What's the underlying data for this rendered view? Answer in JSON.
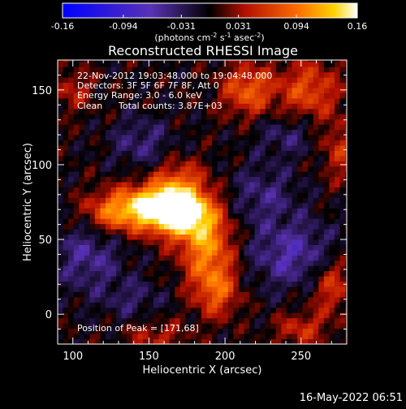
{
  "colorbar": {
    "ticks": [
      "-0.16",
      "-0.094",
      "-0.031",
      "0.031",
      "0.094",
      "0.16"
    ],
    "tick_values": [
      -0.16,
      -0.094,
      -0.031,
      0.031,
      0.094,
      0.16
    ],
    "range": [
      -0.16,
      0.16
    ],
    "unit_label_parts": [
      "(photons cm",
      "-2",
      " s",
      "-1",
      " asec",
      "-2",
      ")"
    ],
    "colormap": "blue-purple-black-red-orange-yellow-white"
  },
  "chart_data": {
    "type": "heatmap",
    "title": "Reconstructed RHESSI Image",
    "xlabel": "Heliocentric X (arcsec)",
    "ylabel": "Heliocentric Y (arcsec)",
    "xlim": [
      90,
      280
    ],
    "ylim": [
      -20,
      170
    ],
    "xticks": [
      100,
      150,
      200,
      250
    ],
    "yticks": [
      0,
      50,
      100,
      150
    ],
    "grid": false,
    "peak": {
      "x": 171,
      "y": 68
    },
    "sources": [
      {
        "x": 171,
        "y": 68,
        "amp": 0.16,
        "sx": 14,
        "sy": 11
      },
      {
        "x": 152,
        "y": 72,
        "amp": 0.13,
        "sx": 16,
        "sy": 10
      },
      {
        "x": 125,
        "y": 68,
        "amp": 0.08,
        "sx": 14,
        "sy": 10
      },
      {
        "x": 188,
        "y": 45,
        "amp": 0.1,
        "sx": 12,
        "sy": 18
      },
      {
        "x": 195,
        "y": 15,
        "amp": 0.07,
        "sx": 10,
        "sy": 12
      },
      {
        "x": 170,
        "y": 90,
        "amp": 0.06,
        "sx": 12,
        "sy": 10
      },
      {
        "x": 215,
        "y": 150,
        "amp": 0.08,
        "sx": 12,
        "sy": 12
      },
      {
        "x": 255,
        "y": 150,
        "amp": 0.07,
        "sx": 14,
        "sy": 14
      },
      {
        "x": 275,
        "y": 110,
        "amp": 0.05,
        "sx": 8,
        "sy": 14
      },
      {
        "x": 270,
        "y": 20,
        "amp": 0.06,
        "sx": 10,
        "sy": 14
      },
      {
        "x": 250,
        "y": -10,
        "amp": 0.05,
        "sx": 12,
        "sy": 8
      },
      {
        "x": 155,
        "y": -15,
        "amp": 0.04,
        "sx": 14,
        "sy": 8
      },
      {
        "x": 100,
        "y": 150,
        "amp": 0.04,
        "sx": 10,
        "sy": 10
      },
      {
        "x": 245,
        "y": 40,
        "amp": -0.06,
        "sx": 20,
        "sy": 16
      },
      {
        "x": 225,
        "y": 80,
        "amp": -0.04,
        "sx": 16,
        "sy": 14
      },
      {
        "x": 110,
        "y": 40,
        "amp": -0.05,
        "sx": 16,
        "sy": 18
      },
      {
        "x": 145,
        "y": 115,
        "amp": -0.04,
        "sx": 14,
        "sy": 12
      },
      {
        "x": 240,
        "y": 120,
        "amp": -0.035,
        "sx": 14,
        "sy": 10
      },
      {
        "x": 140,
        "y": 10,
        "amp": -0.03,
        "sx": 14,
        "sy": 10
      }
    ]
  },
  "annotations": {
    "time_range": "22-Nov-2012 19:03:48.000 to 19:04:48.000",
    "detectors": "Detectors: 3F 5F 6F 7F 8F, Att 0",
    "energy": "Energy Range: 3.0 - 6.0 keV",
    "clean_label": "Clean",
    "total_counts": "Total counts: 3.87E+03",
    "peak_position": "Position of Peak = [171,68]"
  },
  "footer": {
    "timestamp": "16-May-2022 06:51"
  }
}
